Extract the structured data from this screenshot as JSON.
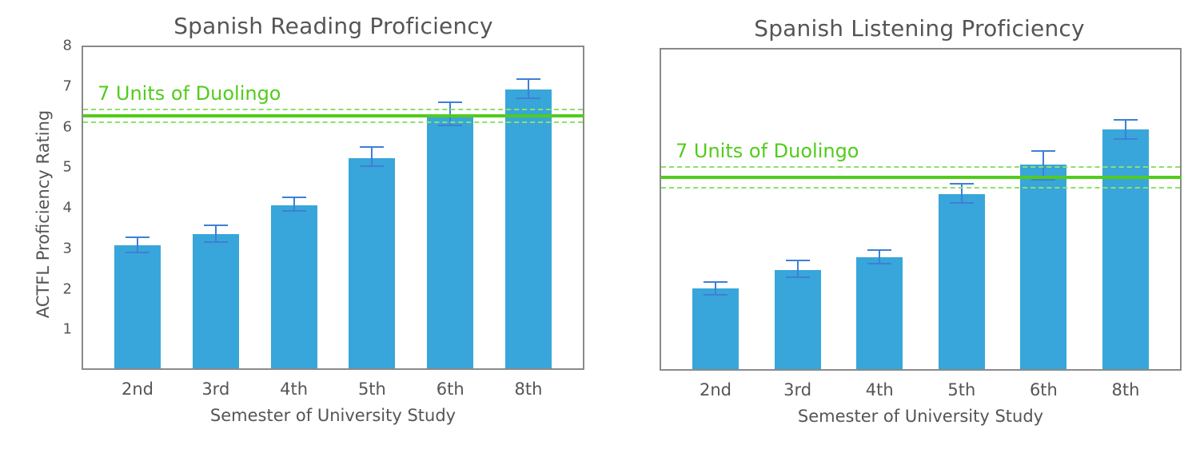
{
  "chart_data": [
    {
      "type": "bar",
      "title": "Spanish Reading Proficiency",
      "xlabel": "Semester of University Study",
      "ylabel": "ACTFL Proficiency Rating",
      "ylim": [
        0,
        8
      ],
      "yticks": [
        "8",
        "7",
        "6",
        "5",
        "4",
        "3",
        "2",
        "1"
      ],
      "categories": [
        "2nd",
        "3rd",
        "4th",
        "5th",
        "6th",
        "8th"
      ],
      "values": [
        3.08,
        3.35,
        4.06,
        5.22,
        6.25,
        6.92
      ],
      "error_low": [
        2.9,
        3.15,
        3.93,
        5.03,
        6.02,
        6.7
      ],
      "error_high": [
        3.27,
        3.57,
        4.25,
        5.5,
        6.6,
        7.18
      ],
      "grid": false,
      "reference_line": {
        "label": "7 Units of Duolingo",
        "value": 6.27,
        "band_low": 6.1,
        "band_high": 6.43,
        "color": "#52cc1c"
      },
      "bar_color": "#38a6da",
      "error_color": "#3f7fd6"
    },
    {
      "type": "bar",
      "title": "Spanish Listening Proficiency",
      "xlabel": "Semester of University Study",
      "ylabel": "",
      "ylim": [
        0,
        8
      ],
      "yticks": [],
      "categories": [
        "2nd",
        "3rd",
        "4th",
        "5th",
        "6th",
        "8th"
      ],
      "values": [
        2.04,
        2.5,
        2.81,
        4.38,
        5.1,
        5.98
      ],
      "error_low": [
        1.89,
        2.31,
        2.65,
        4.15,
        4.74,
        5.74
      ],
      "error_high": [
        2.19,
        2.73,
        2.99,
        4.63,
        5.45,
        6.22
      ],
      "grid": false,
      "reference_line": {
        "label": "7 Units of Duolingo",
        "value": 4.79,
        "band_low": 4.53,
        "band_high": 5.05,
        "color": "#52cc1c"
      },
      "bar_color": "#38a6da",
      "error_color": "#3f7fd6"
    }
  ]
}
